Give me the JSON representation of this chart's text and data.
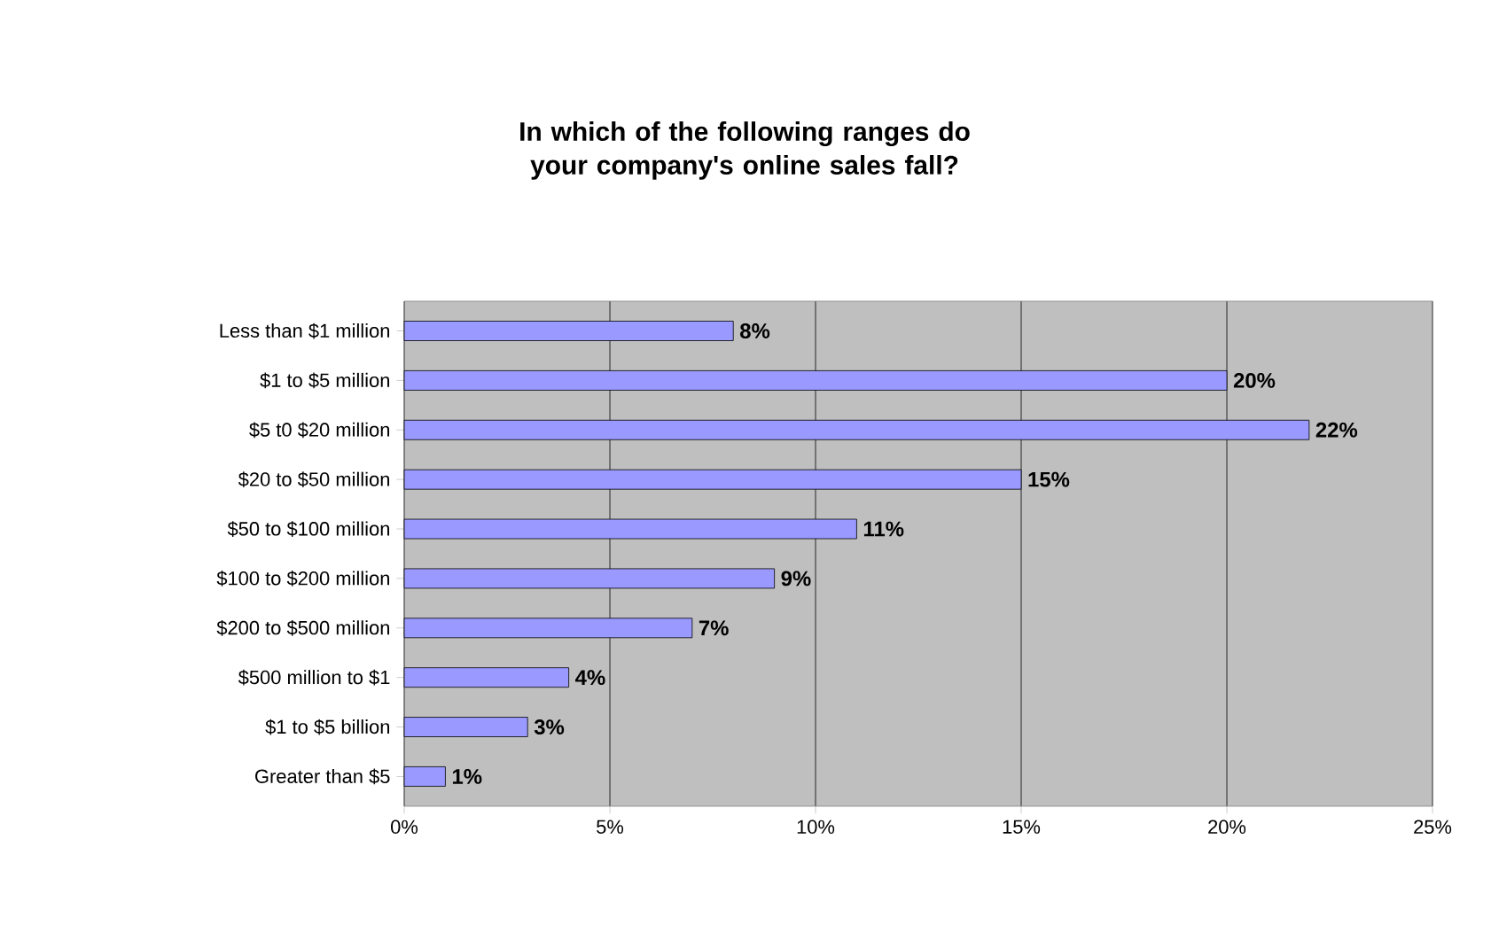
{
  "chart_data": {
    "type": "bar",
    "orientation": "horizontal",
    "title": "In which of the following ranges do your company's online sales fall?",
    "categories": [
      "Less than $1 million",
      "$1 to $5 million",
      "$5 t0 $20 million",
      "$20 to $50 million",
      "$50 to $100 million",
      "$100 to $200 million",
      "$200 to $500 million",
      "$500 million to $1",
      "$1 to $5 billion",
      "Greater than $5"
    ],
    "values": [
      8,
      20,
      22,
      15,
      11,
      9,
      7,
      4,
      3,
      1
    ],
    "value_labels": [
      "8%",
      "20%",
      "22%",
      "15%",
      "11%",
      "9%",
      "7%",
      "4%",
      "3%",
      "1%"
    ],
    "color": "#9999ff",
    "xlim": [
      0,
      25
    ],
    "xticks": [
      {
        "value": 0,
        "label": "0%"
      },
      {
        "value": 5,
        "label": "5%"
      },
      {
        "value": 10,
        "label": "10%"
      },
      {
        "value": 15,
        "label": "15%"
      },
      {
        "value": 20,
        "label": "20%"
      },
      {
        "value": 25,
        "label": "25%"
      }
    ],
    "grid": "x"
  }
}
